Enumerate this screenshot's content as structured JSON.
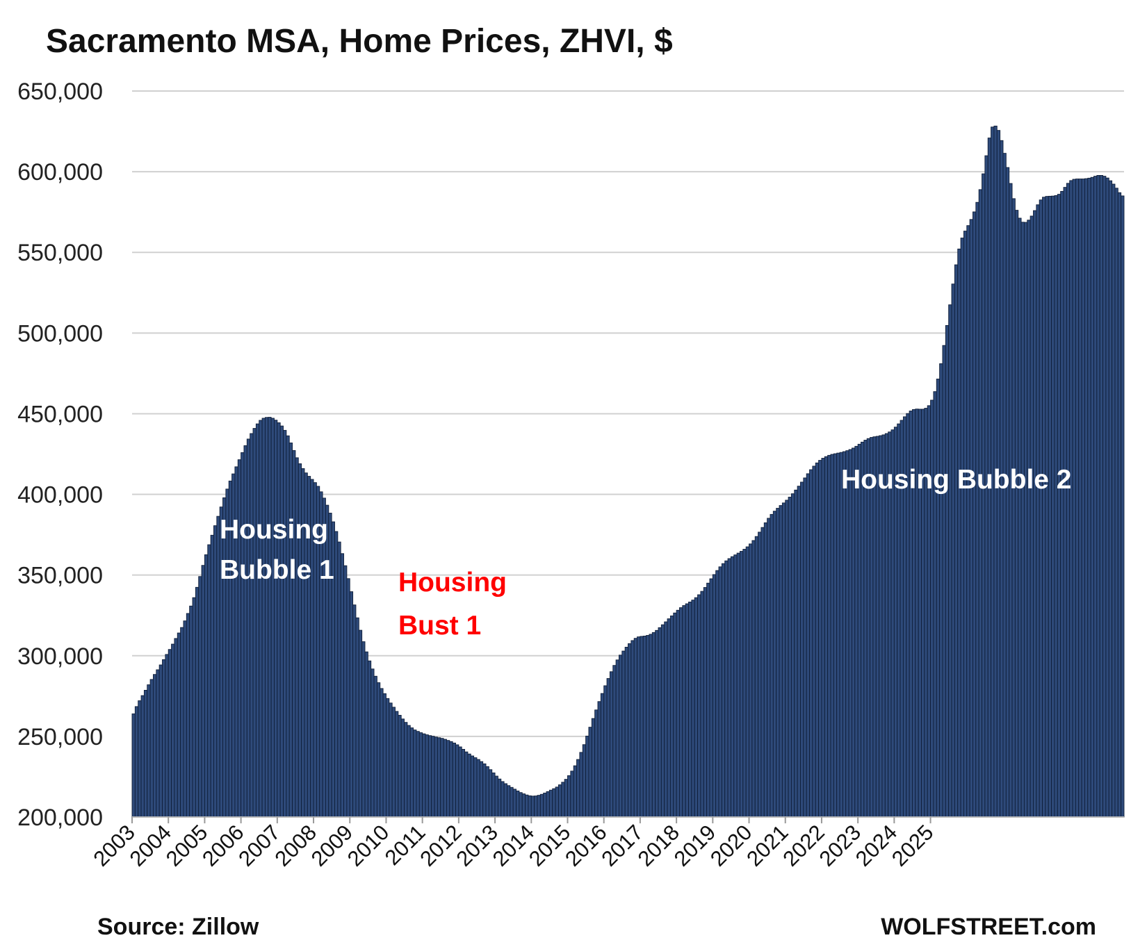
{
  "chart_data": {
    "type": "bar",
    "title": "Sacramento MSA, Home Prices, ZHVI, $",
    "source": "Source: Zillow",
    "brand": "WOLFSTREET.com",
    "ylim": [
      200000,
      650000
    ],
    "yticks": [
      "650,000",
      "600,000",
      "550,000",
      "500,000",
      "450,000",
      "400,000",
      "350,000",
      "300,000",
      "250,000",
      "200,000"
    ],
    "x_tick_labels": [
      "2003",
      "2004",
      "2005",
      "2006",
      "2007",
      "2008",
      "2009",
      "2010",
      "2011",
      "2012",
      "2013",
      "2014",
      "2015",
      "2016",
      "2017",
      "2018",
      "2019",
      "2020",
      "2021",
      "2022",
      "2023",
      "2024",
      "2025"
    ],
    "grid": true,
    "legend": "none",
    "colors": {
      "bar_fill": "#2e4a7a",
      "bar_edge": "#0f1e38",
      "grid": "#d0d0d0",
      "bubble_label": "#ffffff",
      "bust_label": "#ff0000"
    },
    "annotations": [
      {
        "lines": [
          "Housing",
          "Bubble 1"
        ],
        "color": "#ffffff"
      },
      {
        "lines": [
          "Housing",
          "Bust 1"
        ],
        "color": "#ff0000"
      },
      {
        "lines": [
          "Housing Bubble 2"
        ],
        "color": "#ffffff"
      }
    ],
    "start": "2003-01",
    "frequency": "monthly",
    "values": [
      264000,
      268500,
      272100,
      275300,
      278600,
      282000,
      285300,
      288400,
      291300,
      294300,
      297600,
      300800,
      303900,
      307200,
      310700,
      314100,
      317500,
      321600,
      326200,
      330800,
      336000,
      342400,
      349100,
      356000,
      362600,
      368800,
      374700,
      380600,
      386400,
      392200,
      397900,
      403300,
      408300,
      412700,
      417100,
      421500,
      425900,
      430200,
      434300,
      437700,
      440900,
      443700,
      445900,
      447200,
      447700,
      447800,
      447200,
      446000,
      444400,
      442400,
      439700,
      436300,
      431900,
      427200,
      422700,
      419000,
      416000,
      413300,
      411200,
      409300,
      407300,
      405000,
      401600,
      397700,
      393300,
      388400,
      383000,
      377000,
      370500,
      363300,
      355800,
      347800,
      339700,
      331500,
      323500,
      315800,
      308700,
      302400,
      296800,
      291800,
      287300,
      283300,
      279700,
      276500,
      273500,
      270700,
      268100,
      265500,
      263100,
      260800,
      258700,
      256800,
      255300,
      254000,
      253100,
      252300,
      251600,
      251000,
      250500,
      250100,
      249600,
      249200,
      248800,
      248200,
      247500,
      246800,
      245900,
      244800,
      243500,
      242000,
      240400,
      239100,
      237900,
      236800,
      235700,
      234400,
      233000,
      231300,
      229400,
      227400,
      225400,
      223600,
      222000,
      220700,
      219500,
      218400,
      217300,
      216200,
      215200,
      214400,
      213700,
      213200,
      213000,
      213100,
      213500,
      214100,
      214900,
      215800,
      216700,
      217600,
      218600,
      220000,
      221600,
      223400,
      225700,
      228500,
      231800,
      235700,
      240100,
      244900,
      250200,
      255700,
      261100,
      266400,
      271600,
      276600,
      281400,
      285900,
      290100,
      294000,
      297400,
      300400,
      302900,
      305300,
      307500,
      309400,
      310800,
      311700,
      312000,
      312200,
      312600,
      313300,
      314400,
      315700,
      317400,
      319200,
      321000,
      322900,
      324700,
      326500,
      328200,
      329800,
      331100,
      332200,
      333300,
      334500,
      336000,
      337800,
      339900,
      342300,
      345000,
      347700,
      350300,
      352800,
      355100,
      357100,
      358800,
      360200,
      361400,
      362500,
      363600,
      364700,
      366000,
      367500,
      369300,
      371400,
      373900,
      376600,
      379500,
      382400,
      385200,
      387600,
      389600,
      391400,
      393100,
      394700,
      396400,
      398300,
      400400,
      402700,
      405100,
      407600,
      410200,
      412800,
      415300,
      417500,
      419500,
      421100,
      422400,
      423400,
      424200,
      424800,
      425200,
      425600,
      426000,
      426500,
      427100,
      427800,
      428700,
      429800,
      431100,
      432400,
      433600,
      434600,
      435300,
      435700,
      436000,
      436400,
      436900,
      437700,
      438700,
      440000,
      441700,
      443700,
      445900,
      448100,
      450100,
      451700,
      452600,
      452900,
      452800,
      452800,
      453400,
      455000,
      458400,
      463700,
      471500,
      481000,
      492300,
      504700,
      517500,
      530400,
      542300,
      552100,
      558900,
      563200,
      566600,
      570400,
      575100,
      581000,
      588900,
      598700,
      609900,
      620900,
      627700,
      628300,
      625600,
      619300,
      611400,
      602600,
      592700,
      583300,
      576100,
      571200,
      568700,
      568600,
      570000,
      572500,
      575900,
      579500,
      582500,
      584200,
      584700,
      584800,
      584900,
      585200,
      586000,
      587800,
      590300,
      592800,
      594500,
      595300,
      595500,
      595500,
      595500,
      595700,
      596000,
      596500,
      597200,
      597700,
      597700,
      597200,
      596100,
      594400,
      592300,
      589800,
      587000,
      585000
    ]
  }
}
